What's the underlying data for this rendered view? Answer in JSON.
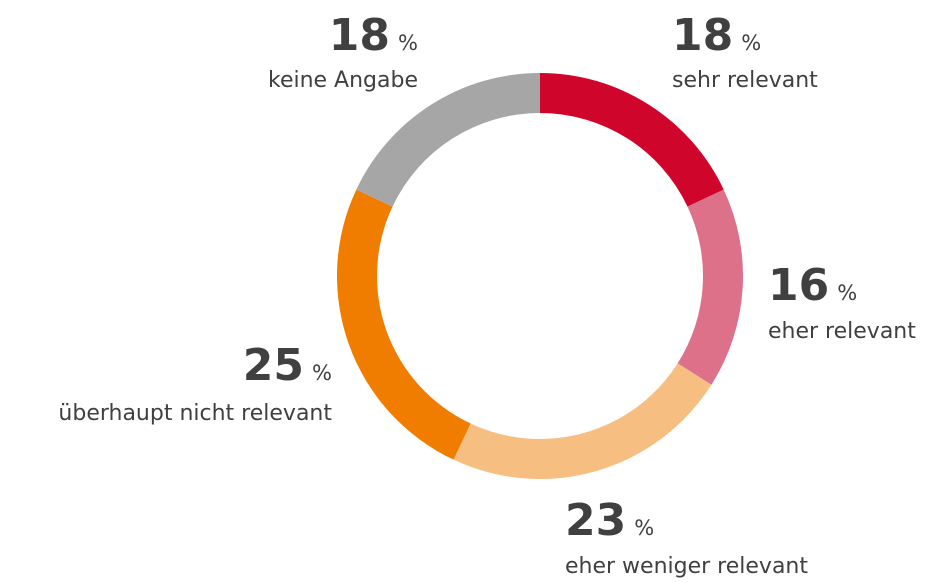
{
  "chart_data": {
    "type": "donut",
    "categories": [
      "sehr relevant",
      "eher relevant",
      "eher weniger relevant",
      "überhaupt nicht relevant",
      "keine Angabe"
    ],
    "values": [
      18,
      16,
      23,
      25,
      18
    ],
    "unit": "%",
    "colors": [
      "#d0052c",
      "#dc7189",
      "#f7be82",
      "#f07d00",
      "#a6a6a6"
    ]
  }
}
